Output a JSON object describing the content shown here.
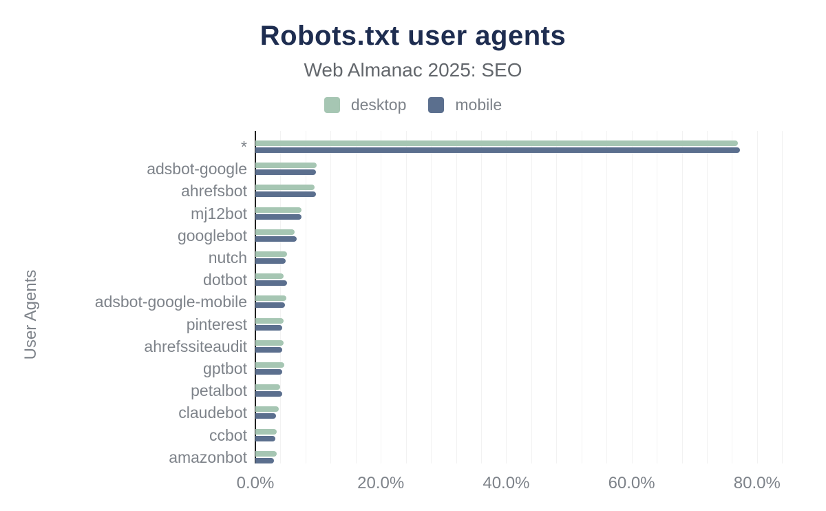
{
  "header": {
    "title": "Robots.txt user agents",
    "subtitle": "Web Almanac 2025: SEO"
  },
  "chart_data": {
    "type": "bar",
    "orientation": "horizontal",
    "title": "Robots.txt user agents",
    "subtitle": "Web Almanac 2025: SEO",
    "xlabel": "",
    "ylabel": "User Agents",
    "xlim": [
      0,
      84
    ],
    "grid_step_pct": 4,
    "grid": true,
    "legend_position": "top-center",
    "x_ticks": [
      {
        "label": "0.0%",
        "value": 0
      },
      {
        "label": "20.0%",
        "value": 20
      },
      {
        "label": "40.0%",
        "value": 40
      },
      {
        "label": "60.0%",
        "value": 60
      },
      {
        "label": "80.0%",
        "value": 80
      }
    ],
    "categories": [
      "*",
      "adsbot-google",
      "ahrefsbot",
      "mj12bot",
      "googlebot",
      "nutch",
      "dotbot",
      "adsbot-google-mobile",
      "pinterest",
      "ahrefssiteaudit",
      "gptbot",
      "petalbot",
      "claudebot",
      "ccbot",
      "amazonbot"
    ],
    "series": [
      {
        "name": "desktop",
        "color": "#a6c6b3",
        "values": [
          76.9,
          9.8,
          9.4,
          7.3,
          6.2,
          5.0,
          4.5,
          4.9,
          4.5,
          4.5,
          4.6,
          4.0,
          3.7,
          3.4,
          3.4
        ]
      },
      {
        "name": "mobile",
        "color": "#5b6f8e",
        "values": [
          77.3,
          9.6,
          9.6,
          7.3,
          6.6,
          4.8,
          5.0,
          4.7,
          4.3,
          4.3,
          4.3,
          4.3,
          3.3,
          3.2,
          3.0
        ]
      }
    ]
  },
  "colors": {
    "background": "#ffffff",
    "title": "#1e2d50",
    "subtitle": "#63676c",
    "axis_text": "#7e838a",
    "axis_line": "#212121",
    "gridline": "#f2f2f2",
    "desktop_bar": "#a6c6b3",
    "mobile_bar": "#5b6f8e"
  }
}
